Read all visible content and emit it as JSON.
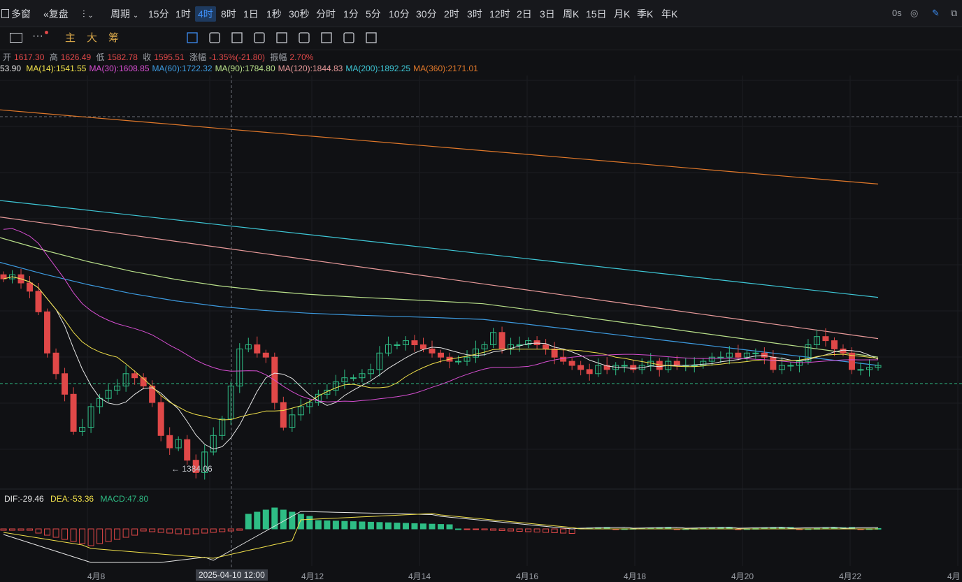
{
  "topbar": {
    "multi_window": "多窗",
    "adjust": "复盘",
    "period": "周期",
    "intervals": [
      "15分",
      "1时",
      "4时",
      "8时",
      "1日",
      "1秒",
      "30秒",
      "分时",
      "1分",
      "5分",
      "10分",
      "30分",
      "2时",
      "3时",
      "12时",
      "2日",
      "3日",
      "周K",
      "15日",
      "月K",
      "季K",
      "年K"
    ],
    "active_interval": "4时",
    "latency": "0s"
  },
  "toolbar2": {
    "labels": [
      "主",
      "大",
      "筹"
    ]
  },
  "ohlc": {
    "open_label": "开",
    "open": "1617.30",
    "high_label": "高",
    "high": "1626.49",
    "low_label": "低",
    "low": "1582.78",
    "close_label": "收",
    "close": "1595.51",
    "change_label": "涨幅",
    "change": "-1.35%(-21.80)",
    "amplitude_label": "振幅",
    "amplitude": "2.70%"
  },
  "ma": {
    "ma7_tail": "53.90",
    "items": [
      {
        "label": "MA(14):1541.55",
        "color": "#f0e04a"
      },
      {
        "label": "MA(30):1608.85",
        "color": "#d64ed1"
      },
      {
        "label": "MA(60):1722.32",
        "color": "#3d9be0"
      },
      {
        "label": "MA(90):1784.80",
        "color": "#b9e08a"
      },
      {
        "label": "MA(120):1844.83",
        "color": "#e89a9a"
      },
      {
        "label": "MA(200):1892.25",
        "color": "#3ec7d6"
      },
      {
        "label": "MA(360):2171.01",
        "color": "#e0782a"
      }
    ]
  },
  "macd": {
    "dif": "DIF:-29.46",
    "dea": "DEA:-53.36",
    "macd": "MACD:47.80"
  },
  "annotations": {
    "low_marker": "← 1384.06",
    "crosshair_time": "2025-04-10 12:00"
  },
  "xaxis": [
    "4月8",
    "4月12",
    "4月14",
    "4月16",
    "4月18",
    "4月20",
    "4月22",
    "4月"
  ],
  "colors": {
    "up": "#2ebd85",
    "down": "#e04848",
    "bg": "#101114",
    "accent": "#3d8ef5"
  },
  "chart_data": {
    "type": "candlestick",
    "title": "",
    "ylabel": "",
    "ylim": [
      1350,
      2350
    ],
    "note_series": [
      {
        "name": "MA(360)",
        "start": 2270,
        "end": 2090
      },
      {
        "name": "MA(200)",
        "start": 2050,
        "end": 1815
      },
      {
        "name": "MA(120)",
        "start": 2010,
        "end": 1715
      },
      {
        "name": "MA(90)",
        "start": 1960,
        "end": 1670
      },
      {
        "name": "MA(60)",
        "start": 1900,
        "end": 1650
      }
    ],
    "candles_close": [
      1860,
      1870,
      1850,
      1830,
      1780,
      1680,
      1630,
      1580,
      1490,
      1500,
      1550,
      1570,
      1590,
      1600,
      1630,
      1620,
      1600,
      1560,
      1480,
      1450,
      1470,
      1420,
      1390,
      1440,
      1480,
      1520,
      1600,
      1690,
      1700,
      1680,
      1670,
      1560,
      1500,
      1530,
      1550,
      1560,
      1580,
      1590,
      1610,
      1620,
      1620,
      1630,
      1640,
      1680,
      1700,
      1700,
      1710,
      1700,
      1690,
      1680,
      1670,
      1660,
      1660,
      1670,
      1690,
      1700,
      1730,
      1690,
      1700,
      1700,
      1710,
      1700,
      1690,
      1670,
      1660,
      1650,
      1640,
      1630,
      1650,
      1640,
      1650,
      1650,
      1640,
      1650,
      1660,
      1640,
      1660,
      1650,
      1650,
      1650,
      1660,
      1670,
      1670,
      1680,
      1670,
      1680,
      1680,
      1670,
      1640,
      1650,
      1650,
      1660,
      1700,
      1720,
      1710,
      1690,
      1680,
      1640,
      1640,
      1645,
      1650
    ]
  }
}
